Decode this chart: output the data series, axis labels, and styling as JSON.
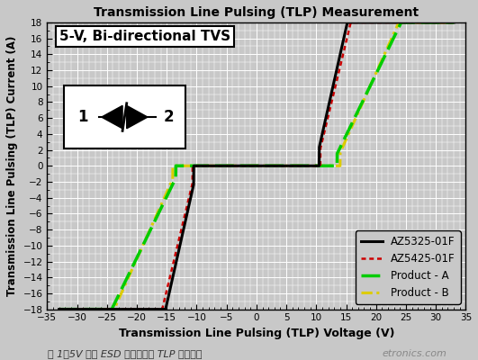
{
  "title": "Transmission Line Pulsing (TLP) Measurement",
  "xlabel": "Transmission Line Pulsing (TLP) Voltage (V)",
  "ylabel": "Transmission Line Pulsing (TLP) Current (A)",
  "xlim": [
    -35,
    35
  ],
  "ylim": [
    -18,
    18
  ],
  "xticks": [
    -35,
    -30,
    -25,
    -20,
    -15,
    -10,
    -5,
    0,
    5,
    10,
    15,
    20,
    25,
    30,
    35
  ],
  "yticks": [
    -18,
    -16,
    -14,
    -12,
    -10,
    -8,
    -6,
    -4,
    -2,
    0,
    2,
    4,
    6,
    8,
    10,
    12,
    14,
    16,
    18
  ],
  "bg_color": "#c8c8c8",
  "plot_bg_color": "#c8c8c8",
  "grid_color": "#ffffff",
  "subtitle": "5-V, Bi-directional TVS",
  "caption": "图 1：5V 双向 ESD 保护组件的 TLP 测试曲线",
  "caption_suffix": "etronics.com",
  "legend_labels": [
    "AZ5325-01F",
    "AZ5425-01F",
    "Product - A",
    "Product - B"
  ],
  "az5325_color": "#000000",
  "az5425_color": "#cc0000",
  "proda_color": "#00cc00",
  "prodb_color": "#ddcc00",
  "az5325_vt": 10.5,
  "az5325_vh": 9.8,
  "az5325_ron": 0.3,
  "az5425_vt": 10.7,
  "az5425_vh": 10.0,
  "az5425_ron": 0.32,
  "proda_vt": 13.5,
  "proda_vh": 12.5,
  "proda_ron": 0.65,
  "prodb_vt": 14.0,
  "prodb_vh": 13.0,
  "prodb_ron": 0.6
}
